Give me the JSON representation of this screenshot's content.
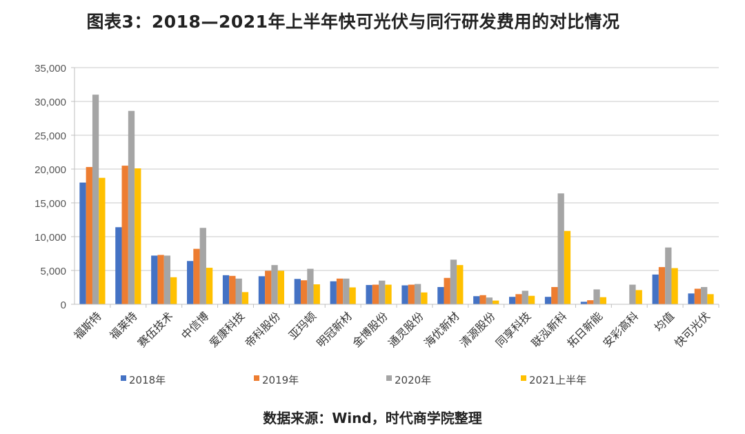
{
  "title": "图表3：2018—2021年上半年快可光伏与同行研发费用的对比情况",
  "source": "数据来源：Wind，时代商学院整理",
  "chart_data": {
    "type": "bar",
    "title": "图表3：2018—2021年上半年快可光伏与同行研发费用的对比情况",
    "xlabel": "",
    "ylabel": "",
    "ylim": [
      0,
      35000
    ],
    "yticks": [
      0,
      5000,
      10000,
      15000,
      20000,
      25000,
      30000,
      35000
    ],
    "ytick_labels": [
      "0",
      "5,000",
      "10,000",
      "15,000",
      "20,000",
      "25,000",
      "30,000",
      "35,000"
    ],
    "grid": true,
    "legend_position": "bottom",
    "categories": [
      "福斯特",
      "福莱特",
      "赛伍技术",
      "中信博",
      "爱康科技",
      "帝科股份",
      "亚玛顿",
      "明冠新材",
      "金博股份",
      "通灵股份",
      "海优新材",
      "清源股份",
      "同享科技",
      "联泓新科",
      "拓日新能",
      "安彩高科",
      "均值",
      "快可光伏"
    ],
    "series": [
      {
        "name": "2018年",
        "color": "#4472C4",
        "values": [
          18000,
          11400,
          7200,
          6400,
          4300,
          4150,
          3750,
          3400,
          2850,
          2800,
          2550,
          1200,
          1100,
          1100,
          370,
          50,
          4400,
          1600
        ]
      },
      {
        "name": "2019年",
        "color": "#ED7D31",
        "values": [
          20300,
          20500,
          7300,
          8200,
          4200,
          4950,
          3550,
          3800,
          2900,
          2900,
          3900,
          1350,
          1500,
          2550,
          600,
          50,
          5500,
          2300
        ]
      },
      {
        "name": "2020年",
        "color": "#A5A5A5",
        "values": [
          31000,
          28600,
          7200,
          11300,
          3800,
          5800,
          5250,
          3800,
          3500,
          3000,
          6600,
          1000,
          2000,
          16400,
          2200,
          2900,
          8400,
          2550
        ]
      },
      {
        "name": "2021上半年",
        "color": "#FFC000",
        "values": [
          18700,
          20100,
          4000,
          5400,
          1800,
          4950,
          2950,
          2500,
          2900,
          1750,
          5800,
          550,
          1250,
          10850,
          1050,
          2100,
          5350,
          1500
        ]
      }
    ]
  }
}
